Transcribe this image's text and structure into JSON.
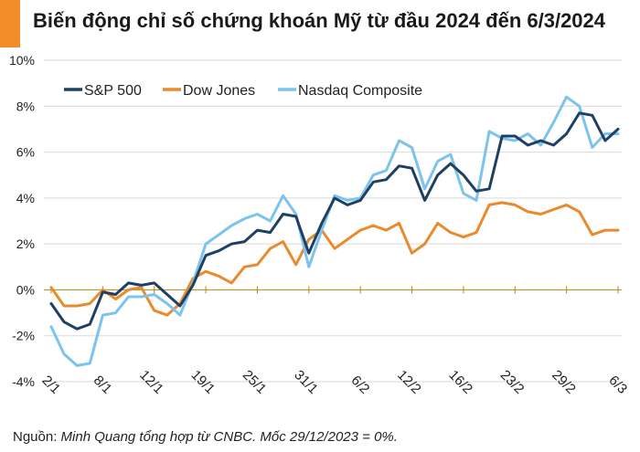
{
  "title": "Biến động chỉ số chứng khoán Mỹ từ đầu 2024 đến 6/3/2024",
  "source": {
    "label": "Nguồn:",
    "text": "Minh Quang tổng hợp từ CNBC. Mốc 29/12/2023 = 0%."
  },
  "colors": {
    "accent": "#f28c28",
    "sp500": "#1f3f63",
    "dow": "#e98a2c",
    "nasdaq": "#7cc3ee",
    "grid": "#d9d9d9",
    "zero_line": "#b8860b"
  },
  "chart_data": {
    "type": "line",
    "title": "Biến động chỉ số chứng khoán Mỹ từ đầu 2024 đến 6/3/2024",
    "ylim": [
      -4,
      10
    ],
    "yticks": [
      -4,
      -2,
      0,
      2,
      4,
      6,
      8,
      10
    ],
    "ytick_labels": [
      "-4%",
      "-2%",
      "0%",
      "2%",
      "4%",
      "6%",
      "8%",
      "10%"
    ],
    "grid": "horizontal",
    "legend": "top-left",
    "categories": [
      "2/1",
      "3/1",
      "4/1",
      "5/1",
      "8/1",
      "9/1",
      "10/1",
      "11/1",
      "12/1",
      "16/1",
      "17/1",
      "18/1",
      "19/1",
      "22/1",
      "23/1",
      "24/1",
      "25/1",
      "26/1",
      "29/1",
      "30/1",
      "31/1",
      "1/2",
      "2/2",
      "5/2",
      "6/2",
      "7/2",
      "8/2",
      "9/2",
      "12/2",
      "13/2",
      "14/2",
      "15/2",
      "16/2",
      "20/2",
      "21/2",
      "22/2",
      "23/2",
      "26/2",
      "27/2",
      "28/2",
      "29/2",
      "1/3",
      "4/3",
      "5/3",
      "6/3"
    ],
    "xtick_labels": [
      {
        "index": 0,
        "label": "2/1"
      },
      {
        "index": 4,
        "label": "8/1"
      },
      {
        "index": 8,
        "label": "12/1"
      },
      {
        "index": 12,
        "label": "19/1"
      },
      {
        "index": 16,
        "label": "25/1"
      },
      {
        "index": 20,
        "label": "31/1"
      },
      {
        "index": 24,
        "label": "6/2"
      },
      {
        "index": 28,
        "label": "12/2"
      },
      {
        "index": 32,
        "label": "16/2"
      },
      {
        "index": 36,
        "label": "23/2"
      },
      {
        "index": 40,
        "label": "29/2"
      },
      {
        "index": 44,
        "label": "6/3"
      }
    ],
    "series": [
      {
        "name": "S&P 500",
        "values": [
          -0.6,
          -1.4,
          -1.7,
          -1.5,
          -0.1,
          -0.2,
          0.3,
          0.2,
          0.3,
          -0.2,
          -0.7,
          0.2,
          1.5,
          1.7,
          2.0,
          2.1,
          2.6,
          2.5,
          3.3,
          3.2,
          1.6,
          2.9,
          4.0,
          3.7,
          3.9,
          4.7,
          4.8,
          5.4,
          5.3,
          3.9,
          5.0,
          5.5,
          5.0,
          4.3,
          4.4,
          6.7,
          6.7,
          6.3,
          6.5,
          6.3,
          6.8,
          7.7,
          7.6,
          6.5,
          7.0
        ]
      },
      {
        "name": "Dow Jones",
        "values": [
          0.1,
          -0.7,
          -0.7,
          -0.6,
          0.0,
          -0.4,
          0.0,
          0.1,
          -0.9,
          -1.1,
          -0.6,
          0.5,
          0.8,
          0.6,
          0.3,
          1.0,
          1.1,
          1.8,
          2.1,
          1.1,
          2.2,
          2.6,
          1.8,
          2.2,
          2.6,
          2.8,
          2.6,
          2.9,
          1.6,
          2.0,
          2.9,
          2.5,
          2.3,
          2.5,
          3.7,
          3.8,
          3.7,
          3.4,
          3.3,
          3.5,
          3.7,
          3.4,
          2.4,
          2.6,
          2.6
        ]
      },
      {
        "name": "Nasdaq Composite",
        "values": [
          -1.6,
          -2.8,
          -3.3,
          -3.2,
          -1.1,
          -1.0,
          -0.3,
          -0.3,
          -0.2,
          -0.6,
          -1.1,
          0.3,
          2.0,
          2.4,
          2.8,
          3.1,
          3.3,
          3.0,
          4.1,
          3.3,
          1.0,
          2.6,
          4.1,
          3.9,
          4.0,
          5.0,
          5.2,
          6.5,
          6.2,
          4.4,
          5.6,
          5.9,
          4.2,
          3.9,
          6.9,
          6.6,
          6.5,
          6.8,
          6.3,
          7.3,
          8.4,
          8.0,
          6.2,
          6.8,
          6.8
        ]
      }
    ]
  }
}
